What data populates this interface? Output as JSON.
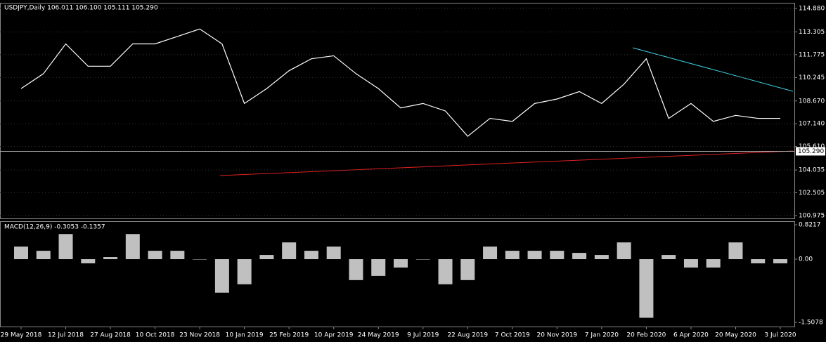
{
  "chart_data": [
    {
      "type": "line",
      "title": "USDJPY,Daily  106.011 106.100 105.111 105.290",
      "categories": [
        "29 May 2018",
        null,
        "12 Jul 2018",
        null,
        "27 Aug 2018",
        null,
        "10 Oct 2018",
        null,
        "23 Nov 2018",
        null,
        "10 Jan 2019",
        null,
        "25 Feb 2019",
        null,
        "10 Apr 2019",
        null,
        "24 May 2019",
        null,
        "9 Jul 2019",
        null,
        "22 Aug 2019",
        null,
        "7 Oct 2019",
        null,
        "20 Nov 2019",
        null,
        "7 Jan 2020",
        null,
        "20 Feb 2020",
        null,
        "6 Apr 2020",
        null,
        "20 May 2020",
        null,
        "3 Jul 2020"
      ],
      "values": [
        109.5,
        110.5,
        112.5,
        111.0,
        111.0,
        112.5,
        112.5,
        113.0,
        113.5,
        112.5,
        108.5,
        109.5,
        110.7,
        111.5,
        111.7,
        110.5,
        109.5,
        108.2,
        108.5,
        108.0,
        106.3,
        107.5,
        107.3,
        108.5,
        108.8,
        109.3,
        108.5,
        109.8,
        111.5,
        107.5,
        108.5,
        107.3,
        107.7,
        107.5,
        107.5
      ],
      "color": "#ffffff",
      "ylim": [
        100.787,
        115.257
      ],
      "yticks": [
        {
          "value": 114.88,
          "label": "114.880"
        },
        113.305,
        111.775,
        110.245,
        {
          "value": 108.67,
          "label": "108.670"
        },
        {
          "value": 107.14,
          "label": "107.140"
        },
        {
          "value": 105.61,
          "label": "105.610"
        },
        104.035,
        102.505,
        100.975
      ],
      "last_price": {
        "value": 105.29,
        "label": "105.290"
      },
      "grid": true
    },
    {
      "type": "bar",
      "title": "MACD(12,26,9) -0.3053 -0.1357",
      "values": [
        0.3,
        0.2,
        0.6,
        -0.1,
        0.05,
        0.6,
        0.2,
        0.2,
        0.0,
        -0.8,
        -0.6,
        0.1,
        0.4,
        0.2,
        0.3,
        -0.5,
        -0.4,
        -0.2,
        0.0,
        -0.6,
        -0.5,
        0.3,
        0.2,
        0.2,
        0.2,
        0.15,
        0.1,
        0.4,
        -1.4,
        0.1,
        -0.2,
        -0.2,
        0.4,
        -0.1,
        -0.1
      ],
      "color": "#c0c0c0",
      "ylim": [
        -1.609,
        0.906
      ],
      "yticks": [
        0.8217,
        {
          "value": 0,
          "label": "0.00"
        },
        -1.5078
      ],
      "grid": false
    }
  ]
}
